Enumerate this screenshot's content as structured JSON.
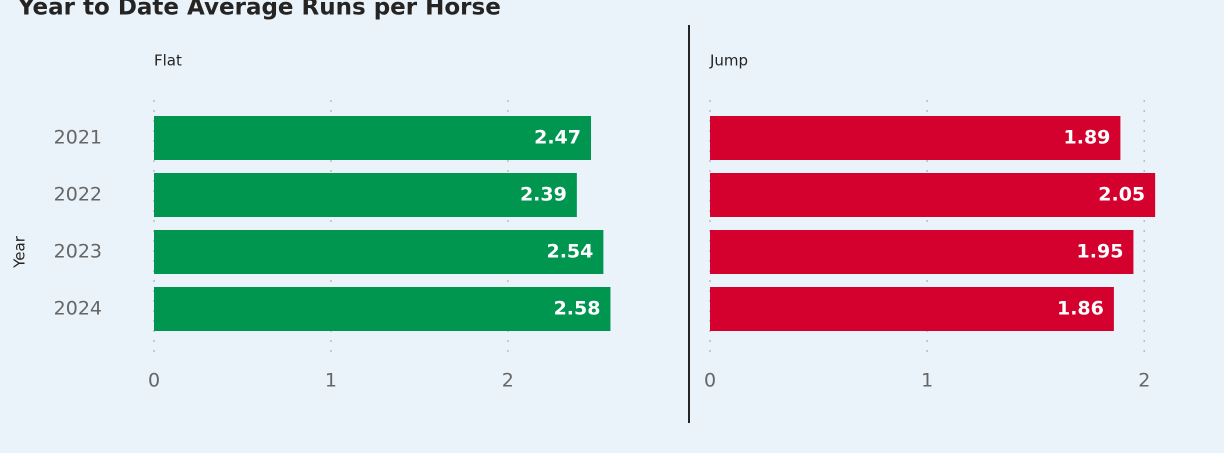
{
  "title": "Year to Date Average Runs per Horse",
  "chart_data": [
    {
      "type": "bar",
      "orientation": "horizontal",
      "title": "Flat",
      "ylabel": "Year",
      "categories": [
        "2021",
        "2022",
        "2023",
        "2024"
      ],
      "values": [
        2.47,
        2.39,
        2.54,
        2.58
      ],
      "color": "#009650",
      "xlim": [
        0,
        2.6
      ],
      "xticks": [
        0,
        1,
        2
      ],
      "grid": true
    },
    {
      "type": "bar",
      "orientation": "horizontal",
      "title": "Jump",
      "categories": [
        "2021",
        "2022",
        "2023",
        "2024"
      ],
      "values": [
        1.89,
        2.05,
        1.95,
        1.86
      ],
      "color": "#d4002d",
      "xlim": [
        0,
        2.1
      ],
      "xticks": [
        0,
        1,
        2
      ],
      "grid": true
    }
  ]
}
